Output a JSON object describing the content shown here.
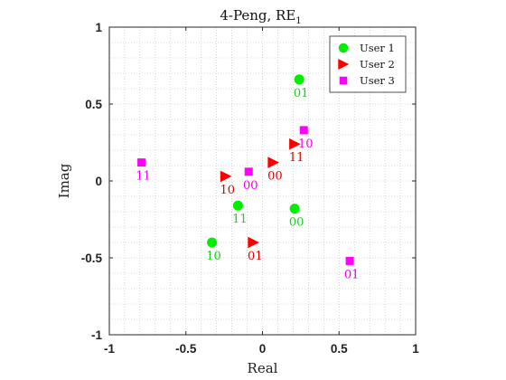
{
  "chart_data": {
    "type": "scatter",
    "title": "4-Peng, RE",
    "title_subscript": "1",
    "xlabel": "Real",
    "ylabel": "Imag",
    "xlim": [
      -1,
      1
    ],
    "ylim": [
      -1,
      1
    ],
    "xticks": [
      "-1",
      "-0.5",
      "0",
      "0.5",
      "1"
    ],
    "yticks": [
      "1",
      "0.5",
      "0",
      "-0.5",
      "-1"
    ],
    "grid": "minor-dotted",
    "legend_position": "top-right",
    "series": [
      {
        "name": "User 1",
        "marker": "circle",
        "color": "#00ee00",
        "label_color": "#22cc22",
        "points": [
          {
            "x": 0.24,
            "y": 0.66,
            "label": "01"
          },
          {
            "x": 0.21,
            "y": -0.18,
            "label": "00"
          },
          {
            "x": -0.16,
            "y": -0.16,
            "label": "11"
          },
          {
            "x": -0.33,
            "y": -0.4,
            "label": "10"
          }
        ]
      },
      {
        "name": "User 2",
        "marker": "triangle-right",
        "color": "#ff0000",
        "label_color": "#dd0000",
        "points": [
          {
            "x": 0.21,
            "y": 0.24,
            "label": "11"
          },
          {
            "x": 0.07,
            "y": 0.12,
            "label": "00"
          },
          {
            "x": -0.24,
            "y": 0.03,
            "label": "10"
          },
          {
            "x": -0.06,
            "y": -0.4,
            "label": "01"
          }
        ]
      },
      {
        "name": "User 3",
        "marker": "square",
        "color": "#ff00ff",
        "label_color": "#ee00ee",
        "points": [
          {
            "x": 0.27,
            "y": 0.33,
            "label": "10"
          },
          {
            "x": -0.09,
            "y": 0.06,
            "label": "00"
          },
          {
            "x": -0.79,
            "y": 0.12,
            "label": "11"
          },
          {
            "x": 0.57,
            "y": -0.52,
            "label": "01"
          }
        ]
      }
    ]
  }
}
